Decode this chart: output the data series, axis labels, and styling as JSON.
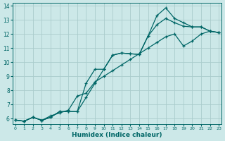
{
  "xlabel": "Humidex (Indice chaleur)",
  "bg_color": "#cce8e8",
  "grid_color": "#aacccc",
  "line_color": "#006666",
  "xlim": [
    -0.3,
    23.3
  ],
  "ylim": [
    5.6,
    14.2
  ],
  "xticks": [
    0,
    1,
    2,
    3,
    4,
    5,
    6,
    7,
    8,
    9,
    10,
    11,
    12,
    13,
    14,
    15,
    16,
    17,
    18,
    19,
    20,
    21,
    22,
    23
  ],
  "yticks": [
    6,
    7,
    8,
    9,
    10,
    11,
    12,
    13,
    14
  ],
  "line1_x": [
    0,
    1,
    2,
    3,
    4,
    5,
    6,
    7,
    8,
    9,
    10,
    11,
    12,
    13,
    14,
    15,
    16,
    17,
    18,
    19,
    20,
    21,
    22,
    23
  ],
  "line1_y": [
    5.9,
    5.82,
    6.1,
    5.88,
    6.1,
    6.5,
    6.5,
    6.5,
    7.5,
    8.5,
    9.5,
    10.5,
    10.65,
    10.6,
    10.55,
    11.85,
    13.3,
    13.85,
    13.1,
    12.8,
    12.5,
    12.5,
    12.2,
    12.1
  ],
  "line2_x": [
    0,
    1,
    2,
    3,
    4,
    5,
    6,
    7,
    8,
    9,
    10,
    11,
    12,
    13,
    14,
    15,
    16,
    17,
    18,
    19,
    20,
    21,
    22,
    23
  ],
  "line2_y": [
    5.9,
    5.82,
    6.1,
    5.88,
    6.1,
    6.5,
    6.5,
    6.5,
    8.5,
    9.5,
    9.5,
    10.5,
    10.65,
    10.6,
    10.55,
    11.85,
    12.65,
    13.1,
    12.8,
    12.55,
    12.5,
    12.5,
    12.2,
    12.1
  ],
  "line3_x": [
    0,
    1,
    2,
    3,
    4,
    5,
    6,
    7,
    8,
    9,
    10,
    11,
    12,
    13,
    14,
    15,
    16,
    17,
    18,
    19,
    20,
    21,
    22,
    23
  ],
  "line3_y": [
    5.9,
    5.82,
    6.1,
    5.88,
    6.2,
    6.4,
    6.6,
    7.6,
    7.8,
    8.6,
    9.0,
    9.4,
    9.8,
    10.2,
    10.6,
    11.0,
    11.4,
    11.8,
    12.0,
    11.15,
    11.5,
    12.0,
    12.2,
    12.1
  ]
}
